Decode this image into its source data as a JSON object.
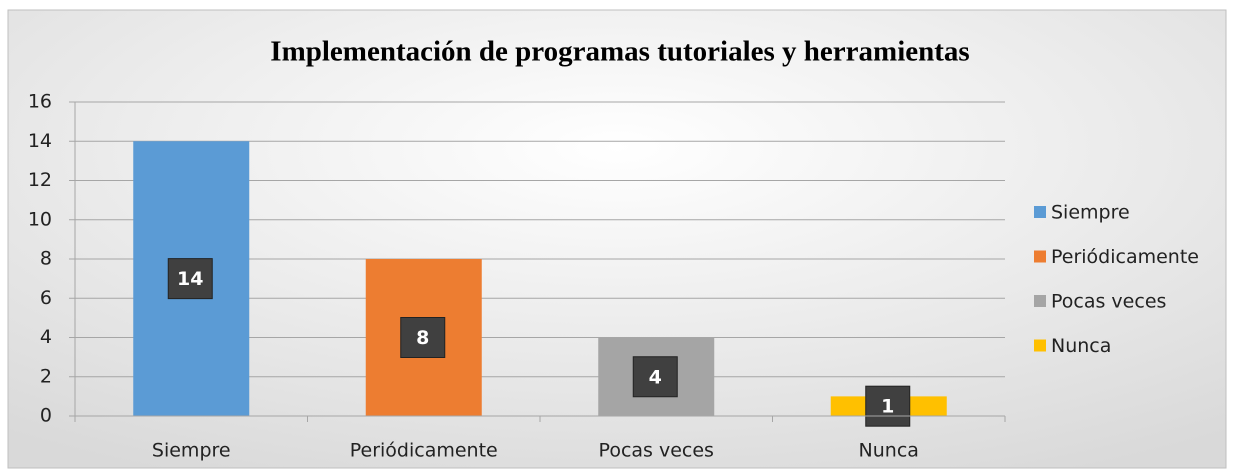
{
  "chart_data": {
    "type": "bar",
    "title": "Implementación de programas tutoriales y herramientas",
    "categories": [
      "Siempre",
      "Periódicamente",
      "Pocas veces",
      "Nunca"
    ],
    "values": [
      14,
      8,
      4,
      1
    ],
    "colors": [
      "#5b9bd5",
      "#ed7d31",
      "#a5a5a5",
      "#ffc000"
    ],
    "ylim": [
      0,
      16
    ],
    "yticks": [
      0,
      2,
      4,
      6,
      8,
      10,
      12,
      14,
      16
    ],
    "grid": true,
    "legend": "right"
  }
}
